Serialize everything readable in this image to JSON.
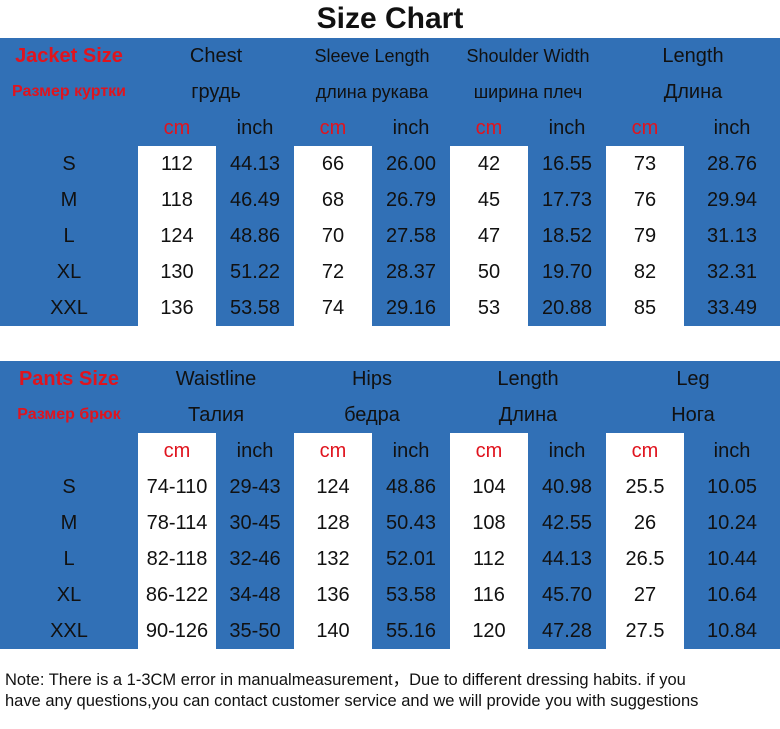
{
  "title": "Size Chart",
  "tables": [
    {
      "label": "Jacket Size",
      "label_ru": "Размер куртки",
      "headers": [
        "Chest",
        "Sleeve Length",
        "Shoulder Width",
        "Length"
      ],
      "headers_ru": [
        "грудь",
        "длина рукава",
        "ширина плеч",
        "Длина"
      ],
      "units": [
        "cm",
        "inch",
        "cm",
        "inch",
        "cm",
        "inch",
        "cm",
        "inch"
      ],
      "rows": [
        [
          "S",
          "112",
          "44.13",
          "66",
          "26.00",
          "42",
          "16.55",
          "73",
          "28.76"
        ],
        [
          "M",
          "118",
          "46.49",
          "68",
          "26.79",
          "45",
          "17.73",
          "76",
          "29.94"
        ],
        [
          "L",
          "124",
          "48.86",
          "70",
          "27.58",
          "47",
          "18.52",
          "79",
          "31.13"
        ],
        [
          "XL",
          "130",
          "51.22",
          "72",
          "28.37",
          "50",
          "19.70",
          "82",
          "32.31"
        ],
        [
          "XXL",
          "136",
          "53.58",
          "74",
          "29.16",
          "53",
          "20.88",
          "85",
          "33.49"
        ]
      ]
    },
    {
      "label": "Pants Size",
      "label_ru": "Размер брюк",
      "headers": [
        "Waistline",
        "Hips",
        "Length",
        "Leg"
      ],
      "headers_ru": [
        "Талия",
        "бедра",
        "Длина",
        "Нога"
      ],
      "units": [
        "cm",
        "inch",
        "cm",
        "inch",
        "cm",
        "inch",
        "cm",
        "inch"
      ],
      "rows": [
        [
          "S",
          "74-110",
          "29-43",
          "124",
          "48.86",
          "104",
          "40.98",
          "25.5",
          "10.05"
        ],
        [
          "M",
          "78-114",
          "30-45",
          "128",
          "50.43",
          "108",
          "42.55",
          "26",
          "10.24"
        ],
        [
          "L",
          "82-118",
          "32-46",
          "132",
          "52.01",
          "112",
          "44.13",
          "26.5",
          "10.44"
        ],
        [
          "XL",
          "86-122",
          "34-48",
          "136",
          "53.58",
          "116",
          "45.70",
          "27",
          "10.64"
        ],
        [
          "XXL",
          "90-126",
          "35-50",
          "140",
          "55.16",
          "120",
          "47.28",
          "27.5",
          "10.84"
        ]
      ]
    }
  ],
  "note": [
    "Note: There is a 1-3CM error in manualmeasurement，Due to different dressing habits. if you",
    "have any questions,you can contact customer service and we will provide you with suggestions"
  ]
}
